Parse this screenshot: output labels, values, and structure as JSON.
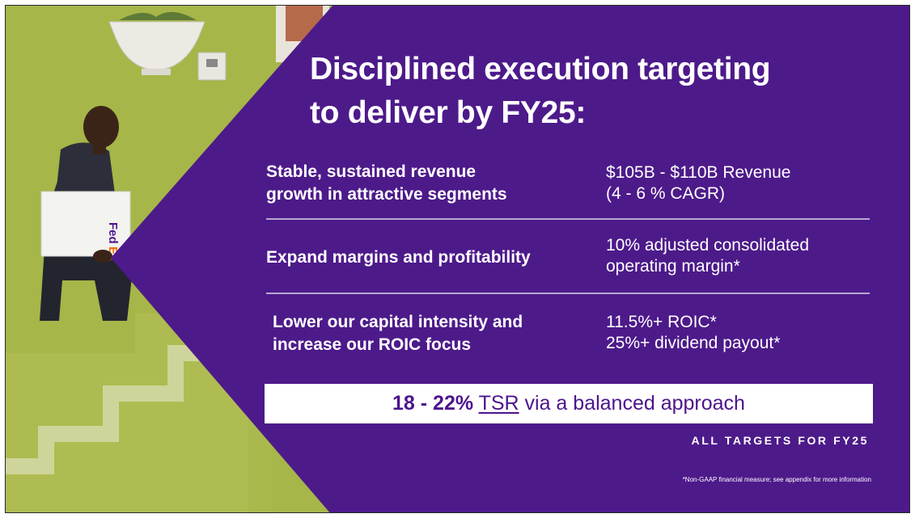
{
  "slide": {
    "title_lines": [
      "Disciplined execution targeting",
      "to deliver by FY25:"
    ],
    "rows": [
      {
        "left": [
          "Stable, sustained revenue",
          "growth in attractive segments"
        ],
        "right": [
          "$105B - $110B  Revenue",
          "(4 - 6 % CAGR)"
        ]
      },
      {
        "left": [
          "Expand margins and profitability"
        ],
        "right": [
          "10% adjusted consolidated",
          "operating margin*"
        ]
      },
      {
        "left": [
          "Lower our capital intensity and",
          "increase our ROIC focus"
        ],
        "right": [
          "11.5%+ ROIC*",
          "25%+ dividend payout*"
        ]
      }
    ],
    "tsr": {
      "bold": "18 - 22%",
      "underlined": "TSR",
      "rest": "via a balanced approach"
    },
    "all_targets": "ALL TARGETS FOR FY25",
    "footnote": "*Non-GAAP financial measure; see appendix for more information",
    "photo_logo": "FedEx",
    "colors": {
      "purple": "#4d1a8a",
      "wall_green": "#a3b547",
      "fedex_orange": "#ff6600"
    }
  }
}
